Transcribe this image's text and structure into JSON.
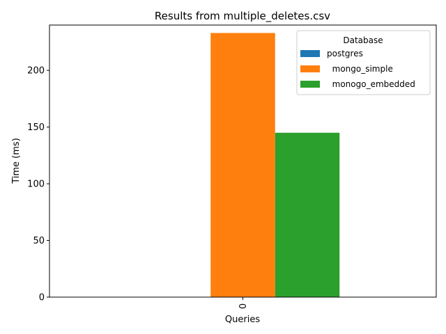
{
  "chart_data": {
    "type": "bar",
    "title": "Results from multiple_deletes.csv",
    "xlabel": "Queries",
    "ylabel": "Time (ms)",
    "categories": [
      "0"
    ],
    "series": [
      {
        "name": "postgres",
        "values": [
          0
        ],
        "color": "#1f77b4"
      },
      {
        "name": "  mongo_simple",
        "values": [
          233
        ],
        "color": "#ff7f0e"
      },
      {
        "name": "  monogo_embedded",
        "values": [
          145
        ],
        "color": "#2ca02c"
      }
    ],
    "ylim": [
      0,
      240
    ],
    "yticks": [
      0,
      50,
      100,
      150,
      200
    ],
    "legend": {
      "title": "Database",
      "placement": "top-right"
    },
    "grid": false
  }
}
